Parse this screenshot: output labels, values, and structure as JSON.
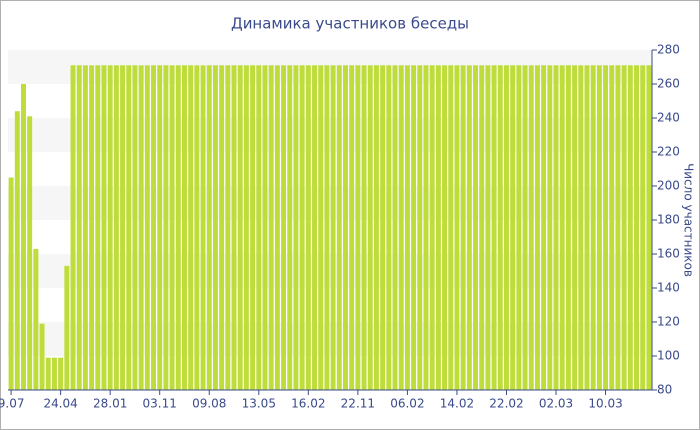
{
  "chart_data": {
    "type": "bar",
    "title": "Динамика участников беседы",
    "y_label": "Число участников",
    "categories": [
      "9.07",
      null,
      null,
      null,
      null,
      null,
      null,
      null,
      "24.04",
      null,
      null,
      null,
      null,
      null,
      null,
      null,
      "28.01",
      null,
      null,
      null,
      null,
      null,
      null,
      null,
      "03.11",
      null,
      null,
      null,
      null,
      null,
      null,
      null,
      "09.08",
      null,
      null,
      null,
      null,
      null,
      null,
      null,
      "13.05",
      null,
      null,
      null,
      null,
      null,
      null,
      null,
      "16.02",
      null,
      null,
      null,
      null,
      null,
      null,
      null,
      "22.11",
      null,
      null,
      null,
      null,
      null,
      null,
      null,
      "06.02",
      null,
      null,
      null,
      null,
      null,
      null,
      null,
      "14.02",
      null,
      null,
      null,
      null,
      null,
      null,
      null,
      "22.02",
      null,
      null,
      null,
      null,
      null,
      null,
      null,
      "02.03",
      null,
      null,
      null,
      null,
      null,
      null,
      null,
      "10.03",
      null,
      null,
      null,
      null,
      null,
      null,
      null
    ],
    "values": [
      205,
      244,
      260,
      241,
      163,
      119,
      99,
      99,
      99,
      153,
      271,
      271,
      271,
      271,
      271,
      271,
      271,
      271,
      271,
      271,
      271,
      271,
      271,
      271,
      271,
      271,
      271,
      271,
      271,
      271,
      271,
      271,
      271,
      271,
      271,
      271,
      271,
      271,
      271,
      271,
      271,
      271,
      271,
      271,
      271,
      271,
      271,
      271,
      271,
      271,
      271,
      271,
      271,
      271,
      271,
      271,
      271,
      271,
      271,
      271,
      271,
      271,
      271,
      271,
      271,
      271,
      271,
      271,
      271,
      271,
      271,
      271,
      271,
      271,
      271,
      271,
      271,
      271,
      271,
      271,
      271,
      271,
      271,
      271,
      271,
      271,
      271,
      271,
      271,
      271,
      271,
      271,
      271,
      271,
      271,
      271,
      271,
      271,
      271,
      271,
      271,
      271,
      271,
      271
    ],
    "color": "#bedd3a",
    "ylim": [
      80,
      280
    ],
    "yticks": [
      80,
      100,
      120,
      140,
      160,
      180,
      200,
      220,
      240,
      260,
      280
    ],
    "y_axis_side": "right",
    "grid": true
  }
}
